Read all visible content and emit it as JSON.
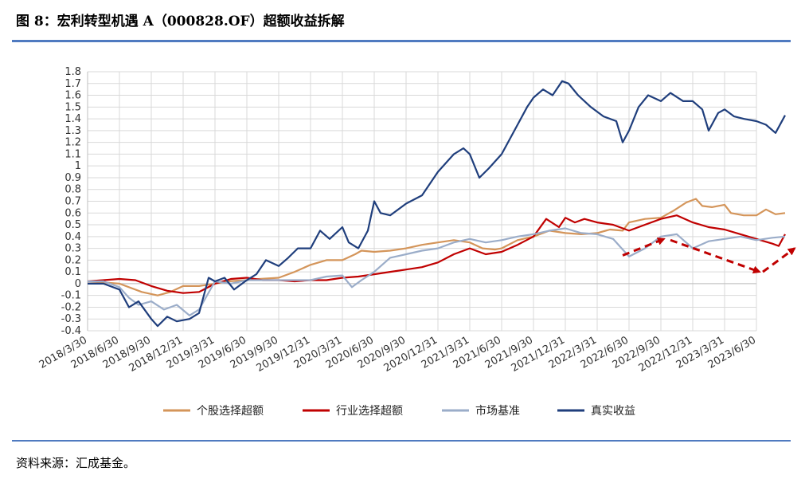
{
  "figure": {
    "title": "图 8：宏利转型机遇 A（000828.OF）超额收益拆解",
    "source": "资料来源：汇成基金。"
  },
  "chart_data": {
    "type": "line",
    "ylim": [
      -0.4,
      1.8
    ],
    "yticks": [
      "1.8",
      "1.7",
      "1.6",
      "1.5",
      "1.4",
      "1.3",
      "1.2",
      "1.1",
      "1",
      "0.9",
      "0.8",
      "0.7",
      "0.6",
      "0.5",
      "0.4",
      "0.3",
      "0.2",
      "0.1",
      "0",
      "-0.1",
      "-0.2",
      "-0.3",
      "-0.4"
    ],
    "xticks": [
      "2018/3/30",
      "2018/6/30",
      "2018/9/30",
      "2018/12/31",
      "2019/3/31",
      "2019/6/30",
      "2019/9/30",
      "2019/12/31",
      "2020/3/31",
      "2020/6/30",
      "2020/9/30",
      "2020/12/31",
      "2021/3/31",
      "2021/6/30",
      "2021/9/30",
      "2021/12/31",
      "2022/3/31",
      "2022/6/30",
      "2022/9/30",
      "2022/12/31",
      "2023/3/31",
      "2023/6/30"
    ],
    "grid": true,
    "legend": "bottom",
    "series": [
      {
        "name": "个股选择超额",
        "color": "#d4955a",
        "points": [
          [
            0,
            0.02
          ],
          [
            1,
            0.0
          ],
          [
            1.7,
            -0.07
          ],
          [
            2.2,
            -0.1
          ],
          [
            2.6,
            -0.07
          ],
          [
            3,
            -0.02
          ],
          [
            3.5,
            -0.02
          ],
          [
            4,
            0.0
          ],
          [
            4.4,
            0.02
          ],
          [
            5,
            0.03
          ],
          [
            5.4,
            0.04
          ],
          [
            6,
            0.05
          ],
          [
            6.5,
            0.1
          ],
          [
            7,
            0.16
          ],
          [
            7.5,
            0.2
          ],
          [
            8,
            0.2
          ],
          [
            8.4,
            0.25
          ],
          [
            8.6,
            0.28
          ],
          [
            9,
            0.27
          ],
          [
            9.5,
            0.28
          ],
          [
            10,
            0.3
          ],
          [
            10.5,
            0.33
          ],
          [
            11,
            0.35
          ],
          [
            11.5,
            0.37
          ],
          [
            12,
            0.35
          ],
          [
            12.4,
            0.3
          ],
          [
            12.8,
            0.29
          ],
          [
            13,
            0.3
          ],
          [
            13.5,
            0.37
          ],
          [
            14,
            0.4
          ],
          [
            14.5,
            0.45
          ],
          [
            15,
            0.43
          ],
          [
            15.5,
            0.42
          ],
          [
            16,
            0.43
          ],
          [
            16.4,
            0.46
          ],
          [
            16.8,
            0.45
          ],
          [
            17,
            0.52
          ],
          [
            17.5,
            0.55
          ],
          [
            18,
            0.56
          ],
          [
            18.4,
            0.62
          ],
          [
            18.8,
            0.69
          ],
          [
            19.1,
            0.72
          ],
          [
            19.3,
            0.66
          ],
          [
            19.6,
            0.65
          ],
          [
            20,
            0.67
          ],
          [
            20.2,
            0.6
          ],
          [
            20.6,
            0.58
          ],
          [
            21,
            0.58
          ],
          [
            21.3,
            0.63
          ],
          [
            21.6,
            0.59
          ],
          [
            21.9,
            0.6
          ]
        ]
      },
      {
        "name": "行业选择超额",
        "color": "#c00000",
        "points": [
          [
            0,
            0.02
          ],
          [
            0.5,
            0.03
          ],
          [
            1,
            0.04
          ],
          [
            1.5,
            0.03
          ],
          [
            2,
            -0.02
          ],
          [
            2.5,
            -0.06
          ],
          [
            3,
            -0.08
          ],
          [
            3.5,
            -0.07
          ],
          [
            4,
            0.0
          ],
          [
            4.5,
            0.04
          ],
          [
            5,
            0.05
          ],
          [
            5.5,
            0.03
          ],
          [
            6,
            0.03
          ],
          [
            6.5,
            0.02
          ],
          [
            7,
            0.03
          ],
          [
            7.5,
            0.03
          ],
          [
            8,
            0.05
          ],
          [
            8.5,
            0.06
          ],
          [
            9,
            0.08
          ],
          [
            9.5,
            0.1
          ],
          [
            10,
            0.12
          ],
          [
            10.5,
            0.14
          ],
          [
            11,
            0.18
          ],
          [
            11.5,
            0.25
          ],
          [
            12,
            0.3
          ],
          [
            12.5,
            0.25
          ],
          [
            13,
            0.27
          ],
          [
            13.5,
            0.33
          ],
          [
            14,
            0.4
          ],
          [
            14.4,
            0.55
          ],
          [
            14.8,
            0.48
          ],
          [
            15,
            0.56
          ],
          [
            15.3,
            0.52
          ],
          [
            15.6,
            0.55
          ],
          [
            16,
            0.52
          ],
          [
            16.5,
            0.5
          ],
          [
            17,
            0.45
          ],
          [
            17.5,
            0.5
          ],
          [
            18,
            0.55
          ],
          [
            18.5,
            0.58
          ],
          [
            19,
            0.52
          ],
          [
            19.5,
            0.48
          ],
          [
            20,
            0.46
          ],
          [
            20.5,
            0.42
          ],
          [
            21,
            0.38
          ],
          [
            21.5,
            0.34
          ],
          [
            21.7,
            0.32
          ],
          [
            21.9,
            0.42
          ]
        ]
      },
      {
        "name": "市场基准",
        "color": "#9badc9",
        "points": [
          [
            0,
            0.02
          ],
          [
            0.5,
            0.02
          ],
          [
            1,
            -0.03
          ],
          [
            1.3,
            -0.12
          ],
          [
            1.6,
            -0.18
          ],
          [
            2,
            -0.15
          ],
          [
            2.4,
            -0.22
          ],
          [
            2.8,
            -0.18
          ],
          [
            3.2,
            -0.27
          ],
          [
            3.5,
            -0.22
          ],
          [
            4,
            0.02
          ],
          [
            4.5,
            0.0
          ],
          [
            5,
            0.03
          ],
          [
            5.5,
            0.03
          ],
          [
            6,
            0.03
          ],
          [
            6.5,
            0.03
          ],
          [
            7,
            0.03
          ],
          [
            7.5,
            0.06
          ],
          [
            8,
            0.07
          ],
          [
            8.3,
            -0.03
          ],
          [
            8.6,
            0.03
          ],
          [
            9,
            0.1
          ],
          [
            9.5,
            0.22
          ],
          [
            10,
            0.25
          ],
          [
            10.5,
            0.28
          ],
          [
            11,
            0.3
          ],
          [
            11.5,
            0.35
          ],
          [
            12,
            0.38
          ],
          [
            12.5,
            0.35
          ],
          [
            13,
            0.37
          ],
          [
            13.5,
            0.4
          ],
          [
            14,
            0.42
          ],
          [
            14.5,
            0.45
          ],
          [
            15,
            0.47
          ],
          [
            15.5,
            0.43
          ],
          [
            16,
            0.42
          ],
          [
            16.5,
            0.38
          ],
          [
            17,
            0.23
          ],
          [
            17.5,
            0.3
          ],
          [
            18,
            0.4
          ],
          [
            18.5,
            0.42
          ],
          [
            19,
            0.3
          ],
          [
            19.5,
            0.36
          ],
          [
            20,
            0.38
          ],
          [
            20.5,
            0.4
          ],
          [
            21,
            0.37
          ],
          [
            21.5,
            0.39
          ],
          [
            21.9,
            0.4
          ]
        ]
      },
      {
        "name": "真实收益",
        "color": "#1f3e7c",
        "points": [
          [
            0,
            0.0
          ],
          [
            0.5,
            0.0
          ],
          [
            1,
            -0.05
          ],
          [
            1.3,
            -0.2
          ],
          [
            1.6,
            -0.15
          ],
          [
            2,
            -0.3
          ],
          [
            2.2,
            -0.36
          ],
          [
            2.5,
            -0.28
          ],
          [
            2.8,
            -0.32
          ],
          [
            3.2,
            -0.3
          ],
          [
            3.5,
            -0.25
          ],
          [
            3.8,
            0.05
          ],
          [
            4,
            0.02
          ],
          [
            4.3,
            0.05
          ],
          [
            4.6,
            -0.05
          ],
          [
            5,
            0.03
          ],
          [
            5.3,
            0.08
          ],
          [
            5.6,
            0.2
          ],
          [
            6,
            0.15
          ],
          [
            6.3,
            0.22
          ],
          [
            6.6,
            0.3
          ],
          [
            7,
            0.3
          ],
          [
            7.3,
            0.45
          ],
          [
            7.6,
            0.38
          ],
          [
            8,
            0.48
          ],
          [
            8.2,
            0.35
          ],
          [
            8.5,
            0.3
          ],
          [
            8.8,
            0.45
          ],
          [
            9,
            0.7
          ],
          [
            9.2,
            0.6
          ],
          [
            9.5,
            0.58
          ],
          [
            10,
            0.68
          ],
          [
            10.5,
            0.75
          ],
          [
            11,
            0.95
          ],
          [
            11.5,
            1.1
          ],
          [
            11.8,
            1.15
          ],
          [
            12,
            1.1
          ],
          [
            12.3,
            0.9
          ],
          [
            12.6,
            0.98
          ],
          [
            13,
            1.1
          ],
          [
            13.5,
            1.35
          ],
          [
            13.8,
            1.5
          ],
          [
            14,
            1.58
          ],
          [
            14.3,
            1.65
          ],
          [
            14.6,
            1.6
          ],
          [
            14.9,
            1.72
          ],
          [
            15.1,
            1.7
          ],
          [
            15.4,
            1.6
          ],
          [
            15.8,
            1.5
          ],
          [
            16.2,
            1.42
          ],
          [
            16.6,
            1.38
          ],
          [
            16.8,
            1.2
          ],
          [
            17,
            1.3
          ],
          [
            17.3,
            1.5
          ],
          [
            17.6,
            1.6
          ],
          [
            18,
            1.55
          ],
          [
            18.3,
            1.62
          ],
          [
            18.7,
            1.55
          ],
          [
            19,
            1.55
          ],
          [
            19.3,
            1.48
          ],
          [
            19.5,
            1.3
          ],
          [
            19.8,
            1.45
          ],
          [
            20,
            1.48
          ],
          [
            20.3,
            1.42
          ],
          [
            20.6,
            1.4
          ],
          [
            21,
            1.38
          ],
          [
            21.3,
            1.35
          ],
          [
            21.6,
            1.28
          ],
          [
            21.9,
            1.43
          ]
        ]
      }
    ],
    "annotations": [
      {
        "type": "dashed-arrow",
        "color": "#c00000",
        "from": [
          16.8,
          0.24
        ],
        "to": [
          18.1,
          0.38
        ]
      },
      {
        "type": "dashed-arrow",
        "color": "#c00000",
        "from": [
          18.3,
          0.37
        ],
        "to": [
          21.1,
          0.1
        ]
      },
      {
        "type": "dashed-arrow",
        "color": "#c00000",
        "from": [
          21.2,
          0.1
        ],
        "to": [
          22.2,
          0.3
        ]
      }
    ]
  }
}
